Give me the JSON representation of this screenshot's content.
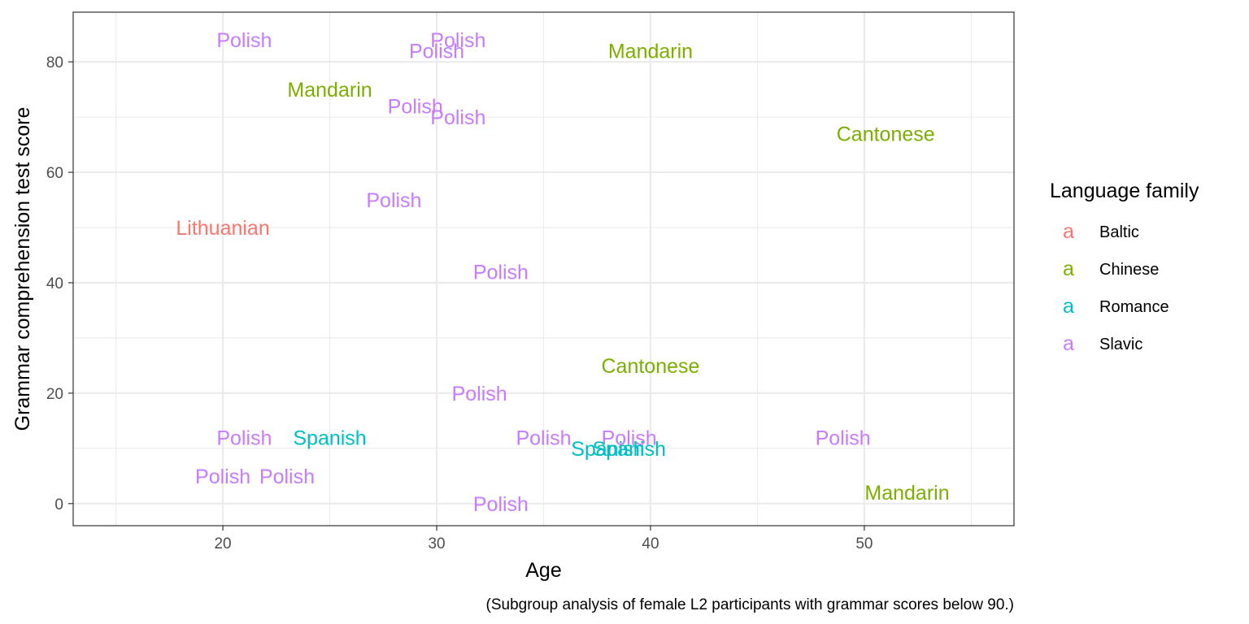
{
  "chart_data": {
    "type": "scatter",
    "marker": "text",
    "xlabel": "Age",
    "ylabel": "Grammar comprehension test score",
    "caption": "(Subgroup analysis of female L2 participants with grammar scores below 90.)",
    "xlim": [
      13,
      57
    ],
    "ylim": [
      -4,
      89
    ],
    "x_ticks": [
      20,
      30,
      40,
      50
    ],
    "y_ticks": [
      0,
      20,
      40,
      60,
      80
    ],
    "grid": true,
    "legend": {
      "title": "Language family",
      "position": "right",
      "key_glyph": "a",
      "entries": [
        {
          "name": "Baltic",
          "color": "#F8766D"
        },
        {
          "name": "Chinese",
          "color": "#7CAE00"
        },
        {
          "name": "Romance",
          "color": "#00BFC4"
        },
        {
          "name": "Slavic",
          "color": "#C77CFF"
        }
      ]
    },
    "points": [
      {
        "x": 21,
        "y": 84,
        "label": "Polish",
        "family": "Slavic"
      },
      {
        "x": 31,
        "y": 84,
        "label": "Polish",
        "family": "Slavic"
      },
      {
        "x": 30,
        "y": 82,
        "label": "Polish",
        "family": "Slavic"
      },
      {
        "x": 40,
        "y": 82,
        "label": "Mandarin",
        "family": "Chinese"
      },
      {
        "x": 25,
        "y": 75,
        "label": "Mandarin",
        "family": "Chinese"
      },
      {
        "x": 29,
        "y": 72,
        "label": "Polish",
        "family": "Slavic"
      },
      {
        "x": 31,
        "y": 70,
        "label": "Polish",
        "family": "Slavic"
      },
      {
        "x": 51,
        "y": 67,
        "label": "Cantonese",
        "family": "Chinese"
      },
      {
        "x": 28,
        "y": 55,
        "label": "Polish",
        "family": "Slavic"
      },
      {
        "x": 20,
        "y": 50,
        "label": "Lithuanian",
        "family": "Baltic"
      },
      {
        "x": 33,
        "y": 42,
        "label": "Polish",
        "family": "Slavic"
      },
      {
        "x": 40,
        "y": 25,
        "label": "Cantonese",
        "family": "Chinese"
      },
      {
        "x": 32,
        "y": 20,
        "label": "Polish",
        "family": "Slavic"
      },
      {
        "x": 21,
        "y": 12,
        "label": "Polish",
        "family": "Slavic"
      },
      {
        "x": 25,
        "y": 12,
        "label": "Spanish",
        "family": "Romance"
      },
      {
        "x": 35,
        "y": 12,
        "label": "Polish",
        "family": "Slavic"
      },
      {
        "x": 39,
        "y": 12,
        "label": "Polish",
        "family": "Slavic"
      },
      {
        "x": 49,
        "y": 12,
        "label": "Polish",
        "family": "Slavic"
      },
      {
        "x": 38,
        "y": 10,
        "label": "Spanish",
        "family": "Romance"
      },
      {
        "x": 39,
        "y": 10,
        "label": "Spanish",
        "family": "Romance"
      },
      {
        "x": 20,
        "y": 5,
        "label": "Polish",
        "family": "Slavic"
      },
      {
        "x": 23,
        "y": 5,
        "label": "Polish",
        "family": "Slavic"
      },
      {
        "x": 52,
        "y": 2,
        "label": "Mandarin",
        "family": "Chinese"
      },
      {
        "x": 33,
        "y": 0,
        "label": "Polish",
        "family": "Slavic"
      }
    ]
  }
}
